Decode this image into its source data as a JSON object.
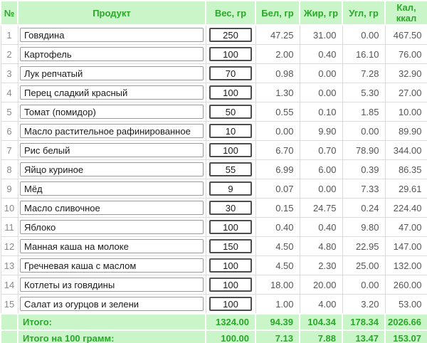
{
  "table": {
    "headers": [
      "№",
      "Продукт",
      "Вес, гр",
      "Бел, гр",
      "Жир, гр",
      "Угл, гр",
      "Кал, ккал"
    ],
    "rows": [
      {
        "num": "1",
        "product": "Говядина",
        "weight": "250",
        "protein": "47.25",
        "fat": "31.00",
        "carbs": "0.00",
        "kcal": "467.50"
      },
      {
        "num": "2",
        "product": "Картофель",
        "weight": "100",
        "protein": "2.00",
        "fat": "0.40",
        "carbs": "16.10",
        "kcal": "76.00"
      },
      {
        "num": "3",
        "product": "Лук репчатый",
        "weight": "70",
        "protein": "0.98",
        "fat": "0.00",
        "carbs": "7.28",
        "kcal": "32.90"
      },
      {
        "num": "4",
        "product": "Перец сладкий красный",
        "weight": "100",
        "protein": "1.30",
        "fat": "0.00",
        "carbs": "5.30",
        "kcal": "27.00"
      },
      {
        "num": "5",
        "product": "Томат (помидор)",
        "weight": "50",
        "protein": "0.55",
        "fat": "0.10",
        "carbs": "1.85",
        "kcal": "10.00"
      },
      {
        "num": "6",
        "product": "Масло растительное рафинированное",
        "weight": "10",
        "protein": "0.00",
        "fat": "9.90",
        "carbs": "0.00",
        "kcal": "89.90"
      },
      {
        "num": "7",
        "product": "Рис белый",
        "weight": "100",
        "protein": "6.70",
        "fat": "0.70",
        "carbs": "78.90",
        "kcal": "344.00"
      },
      {
        "num": "8",
        "product": "Яйцо куриное",
        "weight": "55",
        "protein": "6.99",
        "fat": "6.00",
        "carbs": "0.39",
        "kcal": "86.35"
      },
      {
        "num": "9",
        "product": "Мёд",
        "weight": "9",
        "protein": "0.07",
        "fat": "0.00",
        "carbs": "7.33",
        "kcal": "29.61"
      },
      {
        "num": "10",
        "product": "Масло сливочное",
        "weight": "30",
        "protein": "0.15",
        "fat": "24.75",
        "carbs": "0.24",
        "kcal": "224.40"
      },
      {
        "num": "11",
        "product": "Яблоко",
        "weight": "100",
        "protein": "0.40",
        "fat": "0.40",
        "carbs": "9.80",
        "kcal": "47.00"
      },
      {
        "num": "12",
        "product": "Манная каша на молоке",
        "weight": "150",
        "protein": "4.50",
        "fat": "4.80",
        "carbs": "22.95",
        "kcal": "147.00"
      },
      {
        "num": "13",
        "product": "Гречневая каша с маслом",
        "weight": "100",
        "protein": "4.50",
        "fat": "2.30",
        "carbs": "25.00",
        "kcal": "132.00"
      },
      {
        "num": "14",
        "product": "Котлеты из говядины",
        "weight": "100",
        "protein": "18.00",
        "fat": "20.00",
        "carbs": "0.00",
        "kcal": "260.00"
      },
      {
        "num": "15",
        "product": "Салат из огурцов и зелени",
        "weight": "100",
        "protein": "1.00",
        "fat": "4.00",
        "carbs": "3.20",
        "kcal": "53.00"
      }
    ],
    "totals": {
      "label": "Итого:",
      "weight": "1324.00",
      "protein": "94.39",
      "fat": "104.34",
      "carbs": "178.34",
      "kcal": "2026.66"
    },
    "totals_per_100": {
      "label": "Итого на 100 грамм:",
      "weight": "100.00",
      "protein": "7.13",
      "fat": "7.88",
      "carbs": "13.47",
      "kcal": "153.07"
    }
  },
  "colors": {
    "header_bg": "#c9f5c9",
    "accent_green_text": "#2aa82a",
    "grid_line": "#dcdcdc",
    "value_text": "#555555",
    "row_number_text": "#8a8a8a",
    "weight_input_border": "#4d4d4d",
    "product_input_border": "#9a9a9a"
  }
}
